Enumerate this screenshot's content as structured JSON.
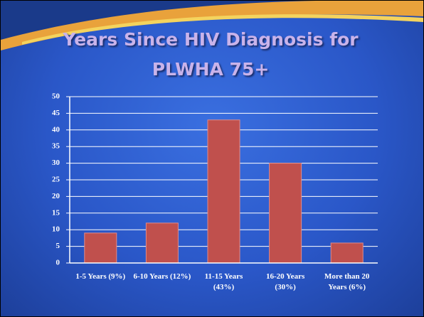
{
  "chart_data": {
    "type": "bar",
    "title": "Years Since HIV Diagnosis for PLWHA 75+",
    "categories": [
      "1-5 Years (9%)",
      "6-10 Years (12%)",
      "11-15 Years (43%)",
      "16-20 Years (30%)",
      "More than 20 Years (6%)"
    ],
    "values": [
      9,
      12,
      43,
      30,
      6
    ],
    "color": "#c0504d",
    "ylim": [
      0,
      50
    ],
    "yticks": [
      0,
      5,
      10,
      15,
      20,
      25,
      30,
      35,
      40,
      45,
      50
    ],
    "grid": true
  }
}
